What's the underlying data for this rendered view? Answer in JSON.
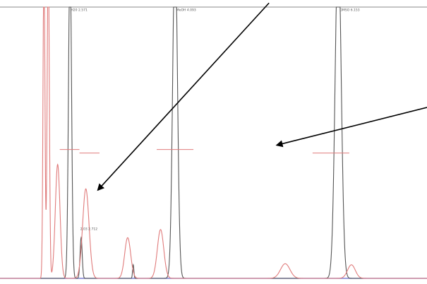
{
  "chart_data": {
    "type": "line",
    "title": "",
    "xlabel": "",
    "ylabel": "",
    "xlim": [
      0,
      100
    ],
    "ylim": [
      0,
      100
    ],
    "grid": false,
    "colors": {
      "gray": "#555555",
      "red": "#e07b7b",
      "baseline": "#7f7fd0",
      "top": "#888888",
      "arrow": "#000000"
    },
    "series": [
      {
        "color": "gray",
        "peaks": [
          {
            "x": 16.4,
            "h": 120,
            "w": 0.35
          },
          {
            "x": 19.0,
            "h": 15,
            "w": 0.25
          },
          {
            "x": 31.2,
            "h": 5,
            "w": 0.15
          },
          {
            "x": 41.0,
            "h": 125,
            "w": 0.55
          },
          {
            "x": 79.2,
            "h": 125,
            "w": 0.7
          }
        ]
      },
      {
        "color": "red",
        "peaks": [
          {
            "x": 10.3,
            "h": 120,
            "w": 0.22
          },
          {
            "x": 11.3,
            "h": 120,
            "w": 0.25
          },
          {
            "x": 13.5,
            "h": 42,
            "w": 0.55
          },
          {
            "x": 20.1,
            "h": 33,
            "w": 0.75
          },
          {
            "x": 29.9,
            "h": 15,
            "w": 0.7
          },
          {
            "x": 37.6,
            "h": 18,
            "w": 0.75
          },
          {
            "x": 66.8,
            "h": 5.4,
            "w": 1.1
          },
          {
            "x": 82.3,
            "h": 5.0,
            "w": 0.9
          }
        ]
      }
    ],
    "markers": [
      {
        "x1": 14.0,
        "x2": 18.6,
        "y": 47.5,
        "color": "red"
      },
      {
        "x1": 18.6,
        "x2": 23.3,
        "y": 46.2,
        "color": "red"
      },
      {
        "x1": 36.7,
        "x2": 45.3,
        "y": 47.5,
        "color": "red"
      },
      {
        "x1": 73.2,
        "x2": 81.8,
        "y": 46.2,
        "color": "red"
      }
    ],
    "annotations": [
      {
        "text": "H20 2.571",
        "x": 16.6,
        "y": 98.6
      },
      {
        "text": "MeOH 4.093",
        "x": 41.3,
        "y": 98.6
      },
      {
        "text": "DMSO 6.153",
        "x": 79.6,
        "y": 98.6
      },
      {
        "text": "2.03 2.712",
        "x": 18.8,
        "y": 17.9
      }
    ],
    "arrows": [
      {
        "x1": 63.0,
        "y1": 101.5,
        "x2": 22.9,
        "y2": 32.5
      },
      {
        "x1": 100.0,
        "y1": 63.0,
        "x2": 64.8,
        "y2": 49.1
      }
    ]
  }
}
